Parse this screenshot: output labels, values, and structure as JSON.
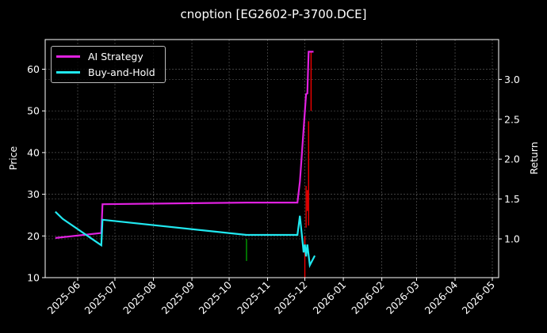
{
  "chart_data": {
    "type": "line",
    "title": "cnoption [EG2602-P-3700.DCE]",
    "xlabel": "",
    "ylabel": "Price",
    "ylabel_right": "Return",
    "ylim": [
      10,
      67
    ],
    "ylim_right": [
      0.55,
      3.45
    ],
    "grid": true,
    "legend_position": "upper left",
    "x_ticks": [
      "2025-06",
      "2025-07",
      "2025-08",
      "2025-09",
      "2025-10",
      "2025-11",
      "2025-12",
      "2026-01",
      "2026-02",
      "2026-03",
      "2026-04",
      "2026-05"
    ],
    "y_ticks": [
      10,
      20,
      30,
      40,
      50,
      60
    ],
    "y_ticks_right": [
      "1.0",
      "1.5",
      "2.0",
      "2.5",
      "3.0"
    ],
    "series": [
      {
        "name": "AI Strategy",
        "color": "#e020e0",
        "axis": "left",
        "points": [
          [
            "2025-05-14",
            19.5
          ],
          [
            "2025-06-20",
            20.7
          ],
          [
            "2025-06-21",
            27.6
          ],
          [
            "2025-10-15",
            28.0
          ],
          [
            "2025-11-25",
            28.0
          ],
          [
            "2025-11-27",
            33.0
          ],
          [
            "2025-12-02",
            54.0
          ],
          [
            "2025-12-03",
            54.2
          ],
          [
            "2025-12-04",
            64.2
          ],
          [
            "2025-12-08",
            64.2
          ]
        ]
      },
      {
        "name": "Buy-and-Hold",
        "color": "#20e8f0",
        "axis": "right",
        "points": [
          [
            "2025-05-14",
            1.34
          ],
          [
            "2025-05-20",
            1.25
          ],
          [
            "2025-06-20",
            0.92
          ],
          [
            "2025-06-21",
            1.24
          ],
          [
            "2025-10-15",
            1.05
          ],
          [
            "2025-11-25",
            1.05
          ],
          [
            "2025-11-27",
            1.29
          ],
          [
            "2025-11-30",
            0.83
          ],
          [
            "2025-12-01",
            0.93
          ],
          [
            "2025-12-02",
            0.78
          ],
          [
            "2025-12-03",
            0.93
          ],
          [
            "2025-12-05",
            0.67
          ],
          [
            "2025-12-09",
            0.79
          ]
        ]
      }
    ],
    "signal_bars": [
      {
        "date": "2025-10-15",
        "color": "#00aa00",
        "low": 14.0,
        "high": 19.3
      },
      {
        "date": "2025-12-01",
        "color": "#ff0000",
        "low": 10.0,
        "high": 20.0
      },
      {
        "date": "2025-12-02",
        "color": "#ff0000",
        "low": 22.0,
        "high": 32.0
      },
      {
        "date": "2025-12-03",
        "color": "#ff0000",
        "low": 26.0,
        "high": 31.0
      },
      {
        "date": "2025-12-04",
        "color": "#ff0000",
        "low": 22.5,
        "high": 47.5
      },
      {
        "date": "2025-12-06",
        "color": "#ff0000",
        "low": 50.0,
        "high": 64.0
      }
    ]
  },
  "legend": {
    "items": [
      {
        "label": "AI Strategy",
        "color": "#e020e0"
      },
      {
        "label": "Buy-and-Hold",
        "color": "#20e8f0"
      }
    ]
  }
}
